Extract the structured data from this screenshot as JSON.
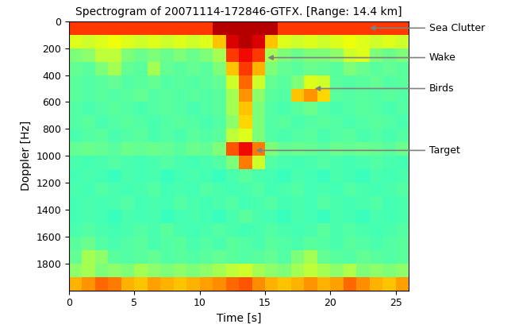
{
  "chart_data": {
    "type": "heatmap",
    "title": "Spectrogram of 20071114-172846-GTFX. [Range: 14.4 km]",
    "x_label": "Time [s]",
    "y_label": "Doppler [Hz]",
    "xlim": [
      0,
      26
    ],
    "ylim": [
      2000,
      0
    ],
    "xticks": [
      0,
      5,
      10,
      15,
      20,
      25
    ],
    "yticks": [
      0,
      200,
      400,
      600,
      800,
      1000,
      1200,
      1400,
      1600,
      1800
    ],
    "x": [
      0,
      1,
      2,
      3,
      4,
      5,
      6,
      7,
      8,
      9,
      10,
      11,
      12,
      13,
      14,
      15,
      16,
      17,
      18,
      19,
      20,
      21,
      22,
      23,
      24,
      25,
      26
    ],
    "y": [
      0,
      100,
      200,
      300,
      400,
      500,
      600,
      700,
      800,
      900,
      1000,
      1100,
      1200,
      1300,
      1400,
      1500,
      1600,
      1700,
      1800,
      1900,
      2000
    ],
    "clim": [
      0,
      1
    ],
    "color": "jet",
    "cells": [
      [
        0.85,
        0.85,
        0.85,
        0.85,
        0.85,
        0.85,
        0.85,
        0.85,
        0.85,
        0.85,
        0.85,
        0.95,
        0.95,
        0.95,
        0.95,
        0.95,
        0.85,
        0.85,
        0.85,
        0.85,
        0.85,
        0.85,
        0.85,
        0.85,
        0.85,
        0.85
      ],
      [
        0.62,
        0.6,
        0.62,
        0.64,
        0.62,
        0.6,
        0.62,
        0.6,
        0.62,
        0.6,
        0.62,
        0.7,
        0.92,
        0.95,
        0.92,
        0.7,
        0.62,
        0.6,
        0.62,
        0.6,
        0.62,
        0.64,
        0.62,
        0.6,
        0.62,
        0.6
      ],
      [
        0.5,
        0.52,
        0.58,
        0.58,
        0.5,
        0.48,
        0.5,
        0.48,
        0.5,
        0.48,
        0.5,
        0.55,
        0.85,
        0.9,
        0.85,
        0.55,
        0.5,
        0.48,
        0.5,
        0.5,
        0.52,
        0.6,
        0.62,
        0.5,
        0.48,
        0.5
      ],
      [
        0.47,
        0.46,
        0.5,
        0.55,
        0.47,
        0.46,
        0.55,
        0.47,
        0.46,
        0.47,
        0.46,
        0.5,
        0.7,
        0.85,
        0.72,
        0.5,
        0.47,
        0.46,
        0.48,
        0.47,
        0.46,
        0.5,
        0.48,
        0.46,
        0.47,
        0.46
      ],
      [
        0.46,
        0.45,
        0.46,
        0.47,
        0.45,
        0.46,
        0.47,
        0.45,
        0.46,
        0.45,
        0.46,
        0.47,
        0.6,
        0.8,
        0.6,
        0.47,
        0.46,
        0.5,
        0.62,
        0.6,
        0.46,
        0.45,
        0.46,
        0.47,
        0.45,
        0.46
      ],
      [
        0.46,
        0.45,
        0.46,
        0.45,
        0.46,
        0.47,
        0.45,
        0.46,
        0.45,
        0.46,
        0.45,
        0.46,
        0.55,
        0.75,
        0.52,
        0.46,
        0.45,
        0.7,
        0.75,
        0.68,
        0.46,
        0.45,
        0.46,
        0.45,
        0.46,
        0.45
      ],
      [
        0.45,
        0.44,
        0.45,
        0.46,
        0.45,
        0.44,
        0.45,
        0.46,
        0.45,
        0.44,
        0.45,
        0.46,
        0.55,
        0.7,
        0.5,
        0.45,
        0.44,
        0.46,
        0.48,
        0.45,
        0.44,
        0.45,
        0.46,
        0.45,
        0.44,
        0.45
      ],
      [
        0.45,
        0.46,
        0.44,
        0.45,
        0.46,
        0.45,
        0.44,
        0.45,
        0.46,
        0.45,
        0.44,
        0.45,
        0.52,
        0.68,
        0.5,
        0.45,
        0.46,
        0.44,
        0.45,
        0.46,
        0.45,
        0.44,
        0.45,
        0.46,
        0.45,
        0.44
      ],
      [
        0.44,
        0.45,
        0.46,
        0.44,
        0.45,
        0.46,
        0.44,
        0.45,
        0.44,
        0.46,
        0.45,
        0.46,
        0.58,
        0.62,
        0.5,
        0.45,
        0.44,
        0.45,
        0.46,
        0.44,
        0.45,
        0.46,
        0.44,
        0.45,
        0.44,
        0.45
      ],
      [
        0.47,
        0.48,
        0.47,
        0.46,
        0.48,
        0.47,
        0.48,
        0.47,
        0.46,
        0.48,
        0.47,
        0.5,
        0.82,
        0.9,
        0.78,
        0.5,
        0.47,
        0.48,
        0.47,
        0.46,
        0.48,
        0.47,
        0.48,
        0.47,
        0.46,
        0.48
      ],
      [
        0.44,
        0.43,
        0.44,
        0.45,
        0.44,
        0.43,
        0.44,
        0.45,
        0.44,
        0.43,
        0.44,
        0.45,
        0.5,
        0.78,
        0.6,
        0.45,
        0.44,
        0.43,
        0.44,
        0.45,
        0.44,
        0.43,
        0.44,
        0.45,
        0.44,
        0.43
      ],
      [
        0.43,
        0.44,
        0.43,
        0.42,
        0.44,
        0.43,
        0.44,
        0.42,
        0.43,
        0.44,
        0.43,
        0.42,
        0.44,
        0.46,
        0.44,
        0.43,
        0.42,
        0.44,
        0.43,
        0.42,
        0.44,
        0.43,
        0.42,
        0.44,
        0.43,
        0.44
      ],
      [
        0.44,
        0.43,
        0.45,
        0.44,
        0.43,
        0.44,
        0.45,
        0.43,
        0.44,
        0.43,
        0.45,
        0.44,
        0.43,
        0.44,
        0.45,
        0.43,
        0.44,
        0.45,
        0.43,
        0.44,
        0.43,
        0.45,
        0.44,
        0.43,
        0.44,
        0.45
      ],
      [
        0.43,
        0.44,
        0.43,
        0.44,
        0.45,
        0.43,
        0.44,
        0.43,
        0.45,
        0.44,
        0.43,
        0.44,
        0.45,
        0.43,
        0.44,
        0.45,
        0.43,
        0.44,
        0.43,
        0.45,
        0.44,
        0.43,
        0.44,
        0.45,
        0.43,
        0.44
      ],
      [
        0.43,
        0.44,
        0.43,
        0.42,
        0.44,
        0.43,
        0.44,
        0.42,
        0.43,
        0.44,
        0.43,
        0.42,
        0.44,
        0.46,
        0.44,
        0.43,
        0.42,
        0.44,
        0.43,
        0.42,
        0.44,
        0.43,
        0.42,
        0.44,
        0.43,
        0.44
      ],
      [
        0.44,
        0.45,
        0.44,
        0.43,
        0.44,
        0.45,
        0.44,
        0.46,
        0.44,
        0.43,
        0.44,
        0.45,
        0.44,
        0.43,
        0.44,
        0.45,
        0.44,
        0.43,
        0.44,
        0.46,
        0.44,
        0.45,
        0.44,
        0.43,
        0.44,
        0.45
      ],
      [
        0.46,
        0.48,
        0.45,
        0.44,
        0.45,
        0.46,
        0.44,
        0.45,
        0.46,
        0.44,
        0.45,
        0.44,
        0.46,
        0.45,
        0.44,
        0.46,
        0.45,
        0.44,
        0.46,
        0.45,
        0.44,
        0.46,
        0.45,
        0.44,
        0.45,
        0.46
      ],
      [
        0.47,
        0.55,
        0.52,
        0.46,
        0.45,
        0.46,
        0.47,
        0.45,
        0.46,
        0.45,
        0.46,
        0.47,
        0.46,
        0.45,
        0.46,
        0.47,
        0.45,
        0.5,
        0.55,
        0.47,
        0.46,
        0.45,
        0.47,
        0.46,
        0.45,
        0.46
      ],
      [
        0.52,
        0.55,
        0.5,
        0.52,
        0.5,
        0.55,
        0.52,
        0.5,
        0.52,
        0.5,
        0.52,
        0.55,
        0.58,
        0.6,
        0.55,
        0.52,
        0.5,
        0.55,
        0.58,
        0.55,
        0.52,
        0.56,
        0.5,
        0.52,
        0.5,
        0.52
      ],
      [
        0.72,
        0.75,
        0.8,
        0.78,
        0.72,
        0.7,
        0.74,
        0.72,
        0.7,
        0.72,
        0.74,
        0.76,
        0.8,
        0.82,
        0.76,
        0.72,
        0.7,
        0.72,
        0.75,
        0.72,
        0.74,
        0.8,
        0.76,
        0.72,
        0.7,
        0.74
      ]
    ],
    "annotations": [
      {
        "text": "Sea Clutter",
        "x": 23,
        "y": 50
      },
      {
        "text": "Wake",
        "x": 15.2,
        "y": 270
      },
      {
        "text": "Birds",
        "x": 18.8,
        "y": 500
      },
      {
        "text": "Target",
        "x": 14.3,
        "y": 960
      }
    ]
  }
}
